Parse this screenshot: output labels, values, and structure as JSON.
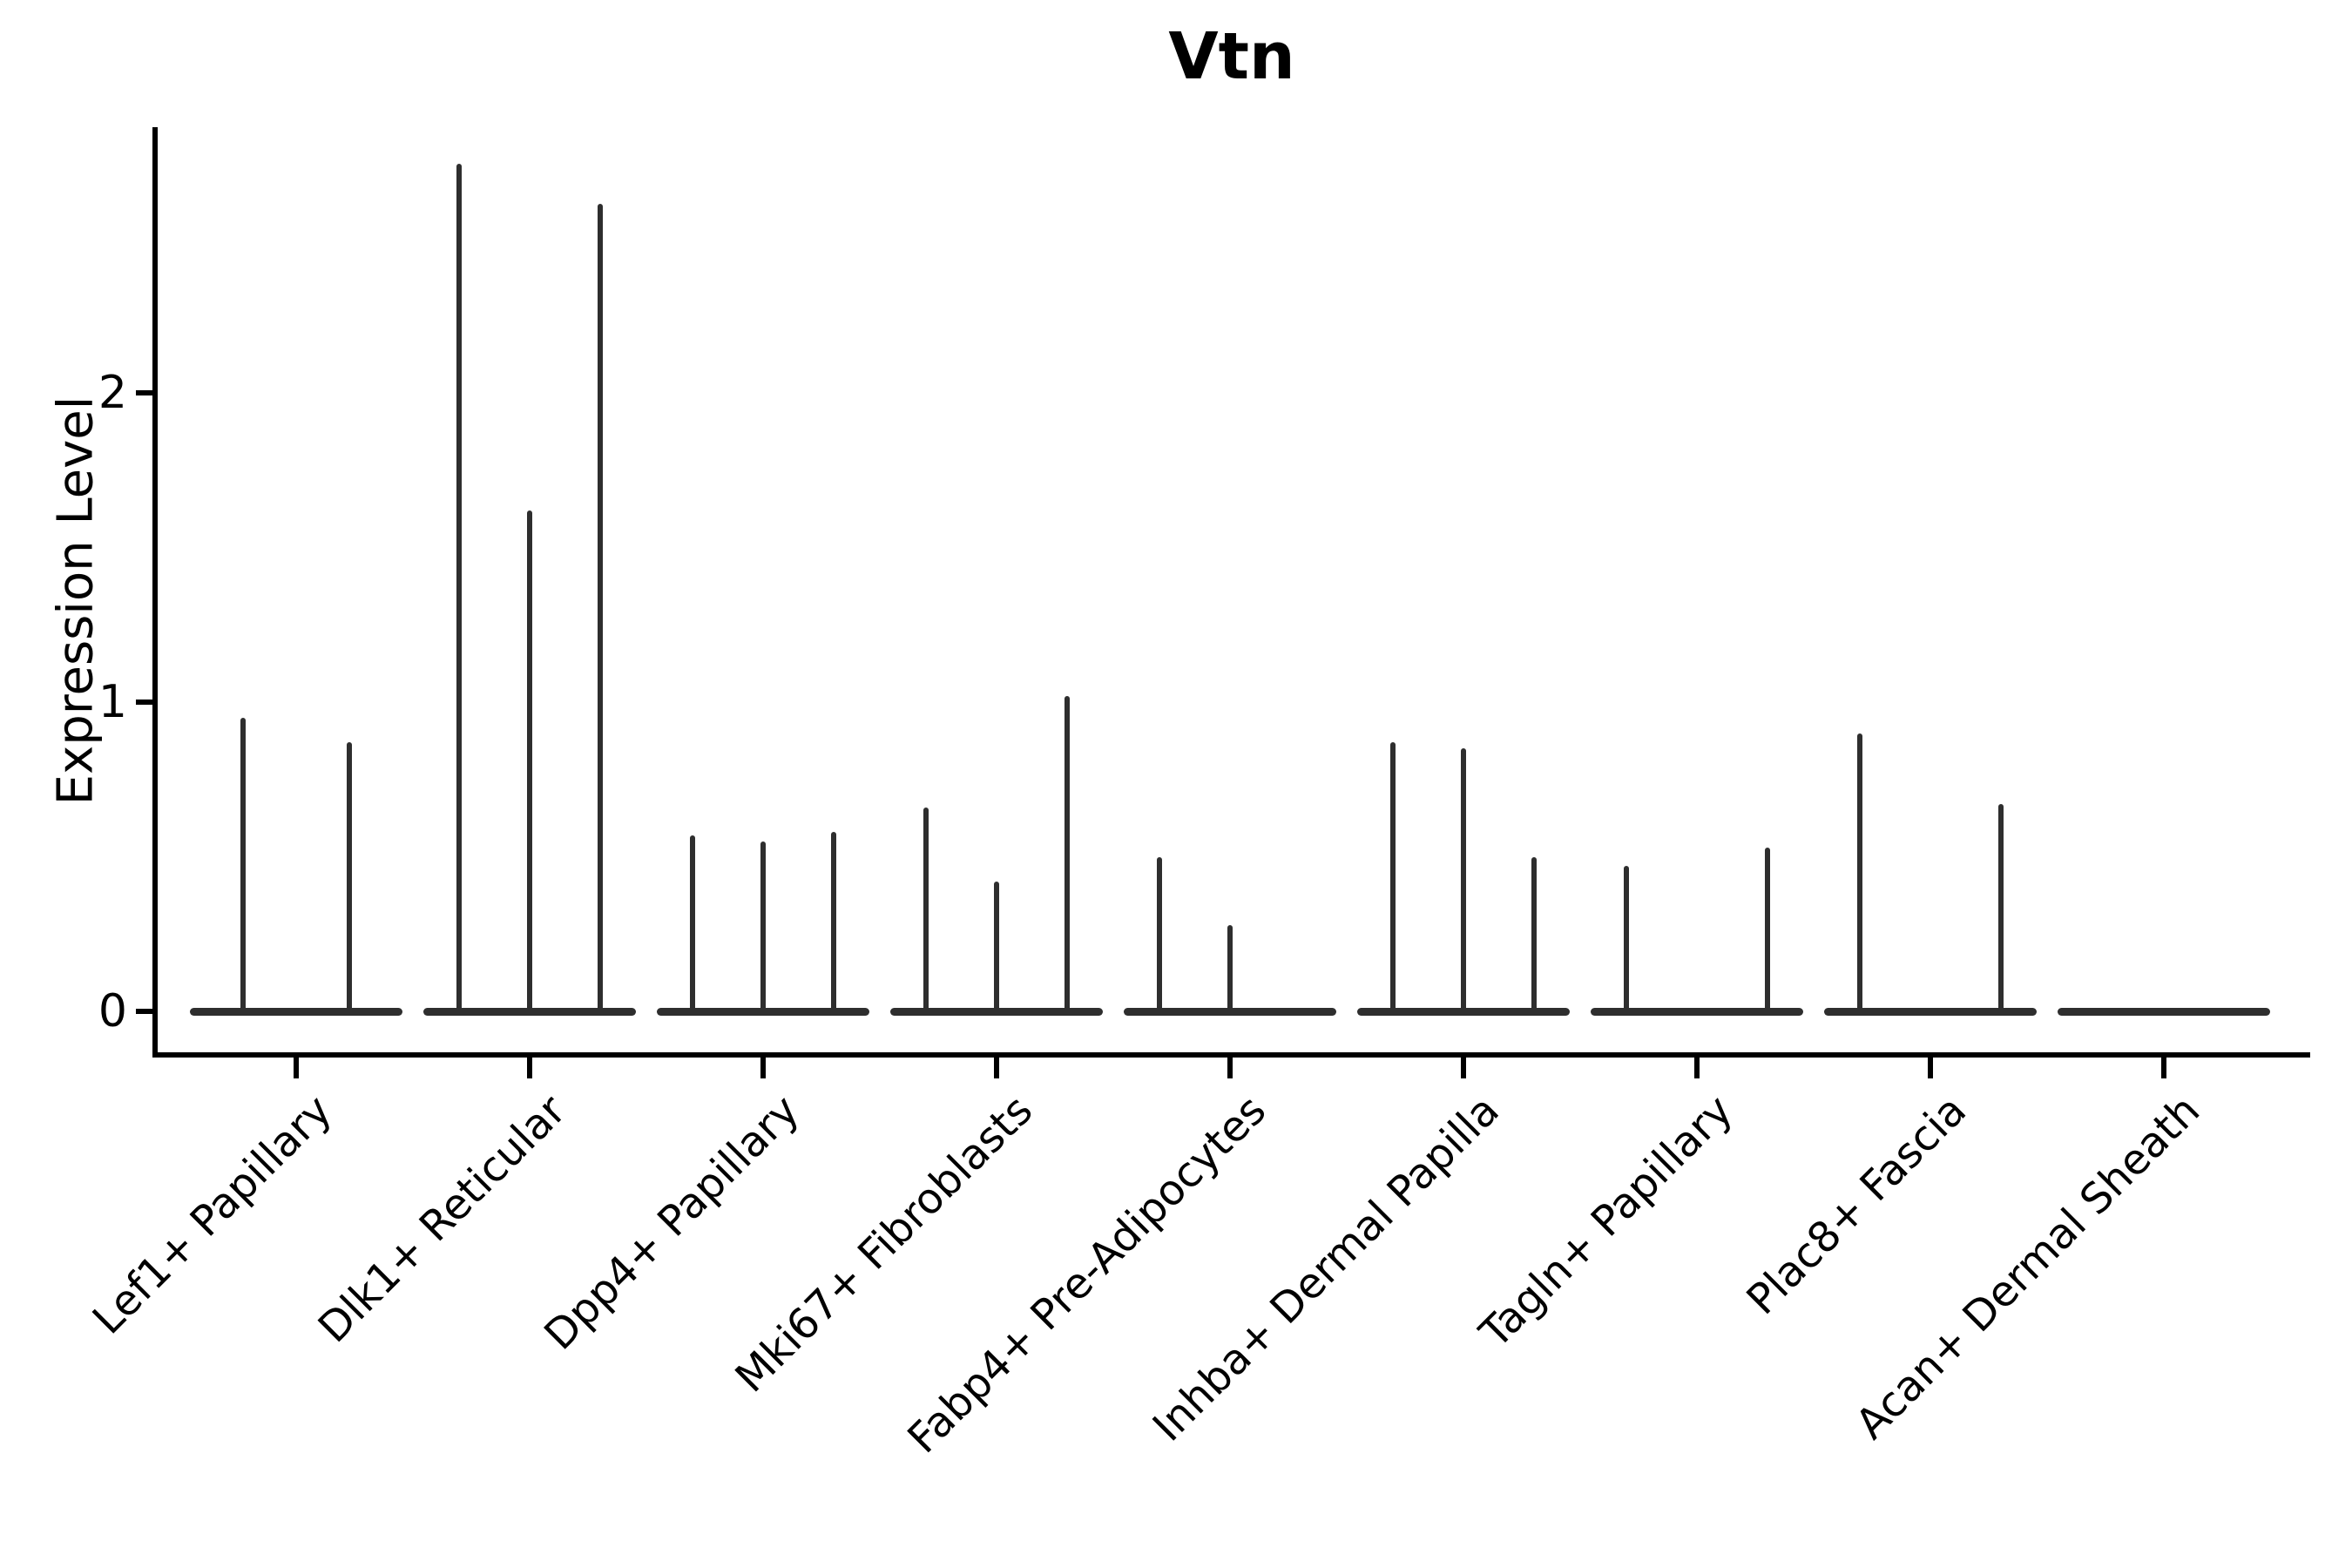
{
  "title": "Vtn",
  "y_axis": {
    "label": "Expression Level",
    "tick_labels": [
      "0",
      "1",
      "2"
    ]
  },
  "colors": {
    "violin": "#2e2e2e",
    "axis": "#000000",
    "background": "#ffffff"
  },
  "chart_data": {
    "type": "violin",
    "title": "Vtn",
    "xlabel": "",
    "ylabel": "Expression Level",
    "ylim": [
      0,
      2.86
    ],
    "yticks": [
      0,
      1,
      2
    ],
    "grid": false,
    "legend": "none",
    "description": "Collapsed violin plot of Vtn expression; nearly all density sits at 0 with thin spikes marking the maximum expression per violin. Several cell-type groups contain 2-3 violins (sub-samples).",
    "categories": [
      "Lef1+ Papillary",
      "Dlk1+ Reticular",
      "Dpp4+ Papillary",
      "Mki67+ Fibroblasts",
      "Fabp4+ Pre-Adipocytes",
      "Inhba+ Dermal Papilla",
      "Tagln+ Papillary",
      "Plac8+ Fascia",
      "Acan+ Dermal Sheath"
    ],
    "series": [
      {
        "label": "Lef1+ Papillary",
        "violin_max_values": [
          0.95,
          0.87
        ]
      },
      {
        "label": "Dlk1+ Reticular",
        "violin_max_values": [
          2.74,
          1.62,
          2.61
        ]
      },
      {
        "label": "Dpp4+ Papillary",
        "violin_max_values": [
          0.57,
          0.55,
          0.58
        ]
      },
      {
        "label": "Mki67+ Fibroblasts",
        "violin_max_values": [
          0.66,
          0.42,
          1.02
        ]
      },
      {
        "label": "Fabp4+ Pre-Adipocytes",
        "violin_max_values": [
          0.5,
          0.28,
          null
        ]
      },
      {
        "label": "Inhba+ Dermal Papilla",
        "violin_max_values": [
          0.87,
          0.85,
          0.5
        ]
      },
      {
        "label": "Tagln+ Papillary",
        "violin_max_values": [
          0.47,
          null,
          0.53
        ]
      },
      {
        "label": "Plac8+ Fascia",
        "violin_max_values": [
          0.9,
          null,
          0.67
        ]
      },
      {
        "label": "Acan+ Dermal Sheath",
        "violin_max_values": [
          null,
          null,
          null
        ]
      }
    ]
  }
}
